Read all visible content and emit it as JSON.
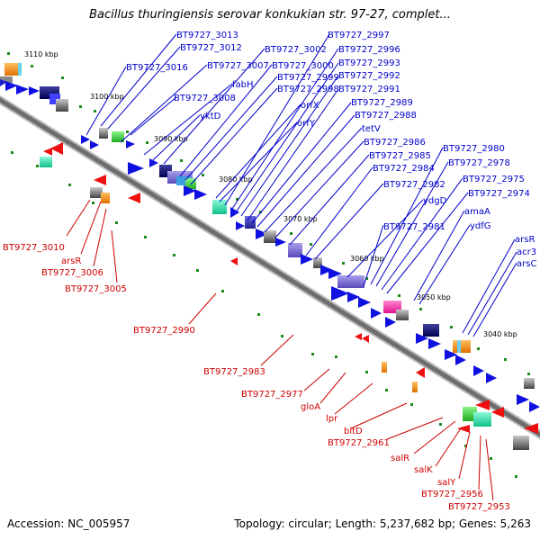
{
  "title": "Bacillus thuringiensis serovar konkukian str. 97-27, complet...",
  "accession": "Accession: NC_005957",
  "topology": "Topology: circular; Length: 5,237,682 bp; Genes: 5,263",
  "colors": {
    "top_label": "#0000cc",
    "bottom_label": "#cc0000",
    "backbone": "#7a7a7a"
  },
  "kbp_ticks": [
    "3110 kbp",
    "3100 kbp",
    "3090 kbp",
    "3080 kbp",
    "3070 kbp",
    "3060 kbp",
    "3050 kbp",
    "3040 kbp"
  ],
  "top_labels": [
    "BT9727_3013",
    "BT9727_3012",
    "BT9727_3016",
    "BT9727_3007",
    "fabH",
    "BT9727_3008",
    "yktD",
    "BT9727_3002",
    "BT9727_3000",
    "BT9727_2999",
    "BT9727_2998",
    "orfX",
    "orfY",
    "BT9727_2997",
    "BT9727_2996",
    "BT9727_2993",
    "BT9727_2992",
    "BT9727_2991",
    "BT9727_2989",
    "BT9727_2988",
    "tetV",
    "BT9727_2986",
    "BT9727_2985",
    "BT9727_2984",
    "BT9727_2982",
    "ydgD",
    "BT9727_2981",
    "BT9727_2980",
    "BT9727_2978",
    "BT9727_2975",
    "BT9727_2974",
    "amaA",
    "ydfG",
    "arsR",
    "acr3",
    "arsC"
  ],
  "bottom_labels": [
    "BT9727_3010",
    "arsR",
    "BT9727_3006",
    "BT9727_3005",
    "BT9727_2990",
    "BT9727_2983",
    "BT9727_2977",
    "gloA",
    "lpr",
    "bltD",
    "BT9727_2961",
    "salR",
    "salK",
    "salY",
    "BT9727_2956",
    "BT9727_2953"
  ]
}
